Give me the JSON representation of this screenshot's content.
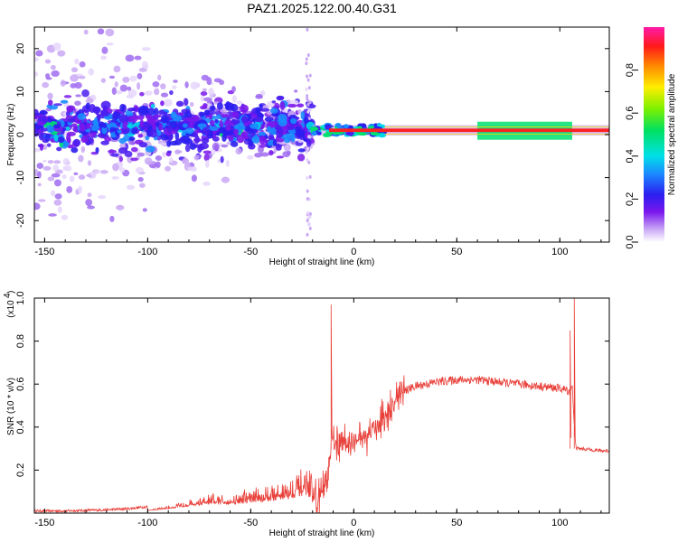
{
  "title": "PAZ1.2025.122.00.40.G31",
  "chart_data": [
    {
      "type": "heatmap",
      "xlabel": "Height of straight line (km)",
      "ylabel": "Frequency (Hz)",
      "xlim": [
        -155,
        124
      ],
      "ylim": [
        -25,
        25
      ],
      "xticks": [
        -150,
        -100,
        -50,
        0,
        50,
        100
      ],
      "yticks": [
        -20,
        -10,
        0,
        10,
        20
      ],
      "colorbar": {
        "label": "Normalized spectral amplitude",
        "range": [
          0,
          1
        ],
        "ticks": [
          "0.0",
          "0.2",
          "0.4",
          "0.6",
          "0.8"
        ],
        "colormap": "rainbow (white-violet-blue-cyan-green-yellow-red-magenta)"
      },
      "features": [
        {
          "x_range": [
            -155,
            -20
          ],
          "description": "scattered blobs, spread ±25 Hz, strongest near 0-5 Hz"
        },
        {
          "x_range": [
            -20,
            15
          ],
          "description": "line at ~1 Hz with cyan/green blobs"
        },
        {
          "x_range": [
            15,
            124
          ],
          "description": "continuous red line at ~1 Hz, green halo 60-105 km"
        }
      ],
      "grid": false
    },
    {
      "type": "line",
      "xlabel": "Height of straight line (km)",
      "ylabel": "SNR (10 * v/v)",
      "y_multiplier_label": "(x10",
      "y_multiplier_exp": "4",
      "xlim": [
        -155,
        124
      ],
      "ylim": [
        0,
        1.0
      ],
      "xticks": [
        -150,
        -100,
        -50,
        0,
        50,
        100
      ],
      "yticks": [
        "0.2",
        "0.4",
        "0.6",
        "0.8",
        "1.0"
      ],
      "color": "#e8403a",
      "grid": false,
      "series": [
        {
          "x": [
            -155,
            -140,
            -120,
            -110,
            -100,
            -90,
            -80,
            -70,
            -60,
            -50,
            -40,
            -30,
            -25,
            -22,
            -20,
            -18,
            -15,
            -12,
            -11,
            -10,
            -9,
            -8,
            -5,
            0,
            5,
            10,
            15,
            20,
            25,
            30,
            40,
            50,
            60,
            70,
            80,
            90,
            100,
            104,
            105,
            106,
            107,
            108,
            109,
            110,
            115,
            120,
            124
          ],
          "y": [
            0.01,
            0.01,
            0.015,
            0.02,
            0.03,
            0.05,
            0.08,
            0.1,
            0.1,
            0.12,
            0.14,
            0.17,
            0.2,
            0.2,
            0.12,
            0.05,
            0.1,
            0.18,
            0.3,
            0.35,
            0.34,
            0.3,
            0.32,
            0.33,
            0.35,
            0.4,
            0.45,
            0.52,
            0.57,
            0.59,
            0.61,
            0.62,
            0.62,
            0.61,
            0.6,
            0.59,
            0.58,
            0.57,
            0.56,
            0.6,
            0.4,
            0.3,
            0.3,
            0.3,
            0.295,
            0.29,
            0.29
          ]
        }
      ],
      "annotations": [
        {
          "x": -11,
          "y": 0.97,
          "note": "spike"
        },
        {
          "x": 105,
          "y": 0.85,
          "note": "spike"
        },
        {
          "x": 107,
          "y": 1.0,
          "note": "spike"
        }
      ]
    }
  ]
}
